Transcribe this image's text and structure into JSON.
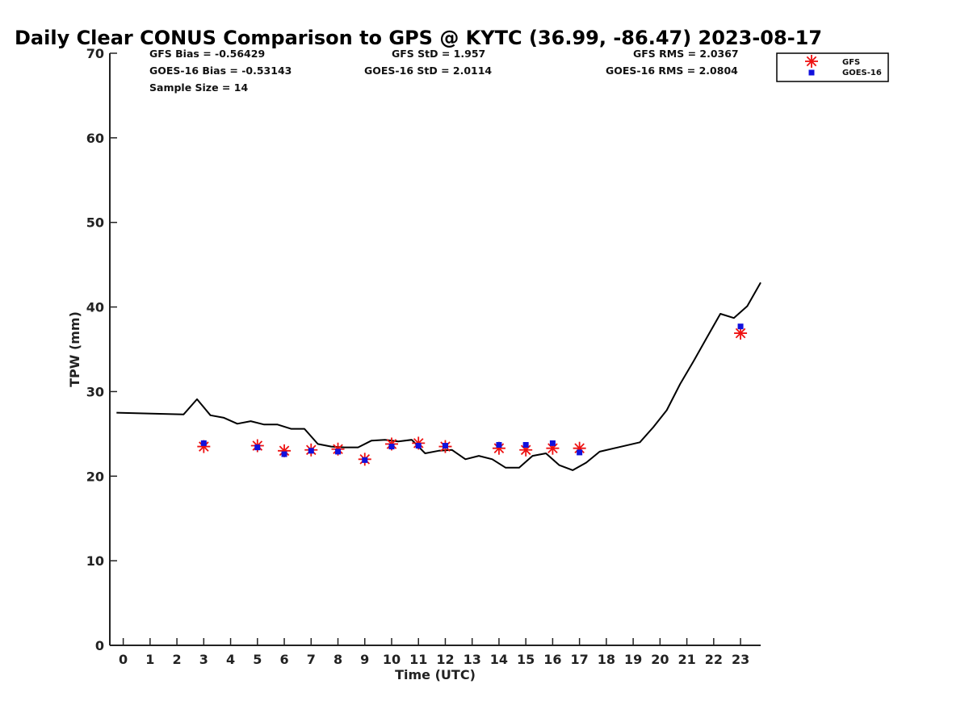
{
  "chart_data": {
    "type": "line",
    "title": "Daily Clear CONUS Comparison to GPS @ KYTC (36.99, -86.47) 2023-08-17",
    "xlabel": "Time (UTC)",
    "ylabel": "TPW (mm)",
    "xlim": [
      -0.5,
      23.75
    ],
    "ylim": [
      0,
      70
    ],
    "x_ticks": [
      0,
      1,
      2,
      3,
      4,
      5,
      6,
      7,
      8,
      9,
      10,
      11,
      12,
      13,
      14,
      15,
      16,
      17,
      18,
      19,
      20,
      21,
      22,
      23
    ],
    "y_ticks": [
      0,
      10,
      20,
      30,
      40,
      50,
      60,
      70
    ],
    "grid": false,
    "legend_position": "top-right",
    "stats": {
      "gfs_bias": "GFS Bias = -0.56429",
      "gfs_std": "GFS StD = 1.957",
      "gfs_rms": "GFS RMS = 2.0367",
      "goes_bias": "GOES-16 Bias = -0.53143",
      "goes_std": "GOES-16 StD = 2.0114",
      "goes_rms": "GOES-16 RMS = 2.0804",
      "sample_size": "Sample Size = 14"
    },
    "series": [
      {
        "name": "",
        "kind": "line",
        "color": "#000000",
        "x": [
          -0.25,
          2.25,
          2.75,
          3.25,
          3.75,
          4.25,
          4.75,
          5.25,
          5.75,
          6.25,
          6.75,
          7.25,
          7.75,
          8.25,
          8.75,
          9.25,
          9.75,
          10.25,
          10.75,
          11.25,
          11.75,
          12.25,
          12.75,
          13.25,
          13.75,
          14.25,
          14.75,
          15.25,
          15.75,
          16.25,
          16.75,
          17.25,
          17.75,
          19.25,
          19.75,
          20.25,
          20.75,
          21.25,
          21.75,
          22.25,
          22.75,
          23.25,
          23.75
        ],
        "y": [
          27.5,
          27.3,
          29.1,
          27.2,
          26.9,
          26.2,
          26.5,
          26.1,
          26.1,
          25.6,
          25.6,
          23.8,
          23.5,
          23.4,
          23.4,
          24.2,
          24.3,
          24.1,
          24.3,
          22.7,
          23.0,
          23.1,
          22.0,
          22.4,
          22.0,
          21.0,
          21.0,
          22.4,
          22.7,
          21.3,
          20.7,
          21.6,
          22.9,
          24.0,
          25.8,
          27.8,
          30.9,
          33.6,
          36.4,
          39.2,
          38.7,
          40.1,
          42.9
        ]
      },
      {
        "name": "GFS",
        "kind": "scatter",
        "marker": "asterisk",
        "color": "#ee1111",
        "x": [
          3,
          5,
          6,
          7,
          8,
          9,
          10,
          11,
          12,
          14,
          15,
          16,
          17,
          23
        ],
        "y": [
          23.5,
          23.6,
          23.0,
          23.1,
          23.2,
          22.0,
          23.8,
          23.9,
          23.5,
          23.3,
          23.1,
          23.3,
          23.3,
          36.9
        ]
      },
      {
        "name": "GOES-16",
        "kind": "scatter",
        "marker": "square",
        "color": "#1111dd",
        "x": [
          3,
          5,
          6,
          7,
          8,
          9,
          10,
          11,
          12,
          14,
          15,
          16,
          17,
          23
        ],
        "y": [
          23.9,
          23.4,
          22.6,
          23.0,
          22.9,
          21.9,
          23.5,
          23.6,
          23.6,
          23.7,
          23.7,
          23.9,
          22.8,
          37.7
        ]
      }
    ]
  }
}
